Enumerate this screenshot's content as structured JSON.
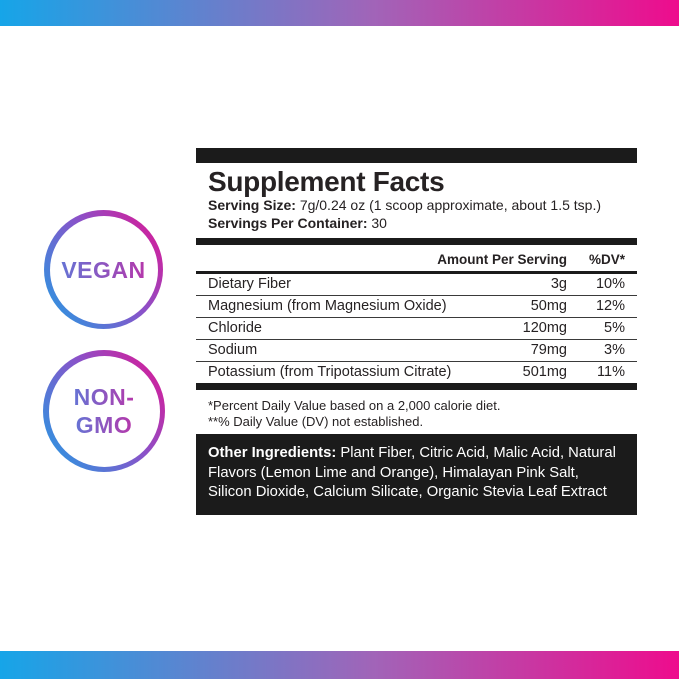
{
  "colors": {
    "gradient_left": "#16A5E8",
    "gradient_right": "#EE0C8D",
    "badge_text_start": "#6673D4",
    "badge_text_end": "#B538AB",
    "panel_black": "#1b1b1b",
    "text": "#262223"
  },
  "badges": [
    {
      "name": "vegan",
      "lines": [
        "VEGAN"
      ]
    },
    {
      "name": "non-gmo",
      "lines": [
        "NON-",
        "GMO"
      ]
    }
  ],
  "panel": {
    "title": "Supplement Facts",
    "serving_size_label": "Serving Size:",
    "serving_size_value": "7g/0.24 oz (1 scoop approximate, about 1.5 tsp.)",
    "servings_label": "Servings Per Container:",
    "servings_value": "30",
    "columns": {
      "amount": "Amount Per Serving",
      "dv": "%DV*"
    },
    "rows": [
      {
        "name": "Dietary Fiber",
        "amount": "3g",
        "dv": "10%"
      },
      {
        "name": "Magnesium (from Magnesium Oxide)",
        "amount": "50mg",
        "dv": "12%"
      },
      {
        "name": "Chloride",
        "amount": "120mg",
        "dv": "5%"
      },
      {
        "name": "Sodium",
        "amount": "79mg",
        "dv": "3%"
      },
      {
        "name": "Potassium (from Tripotassium Citrate)",
        "amount": "501mg",
        "dv": "11%"
      }
    ],
    "footnotes": [
      "*Percent Daily Value based on a 2,000 calorie diet.",
      "**% Daily Value (DV) not established."
    ],
    "other_ingredients_label": "Other Ingredients:",
    "other_ingredients_value": "Plant Fiber, Citric Acid, Malic Acid, Natural Flavors (Lemon Lime and Orange), Himalayan Pink Salt, Silicon Dioxide, Calcium Silicate, Organic Stevia Leaf Extract"
  }
}
